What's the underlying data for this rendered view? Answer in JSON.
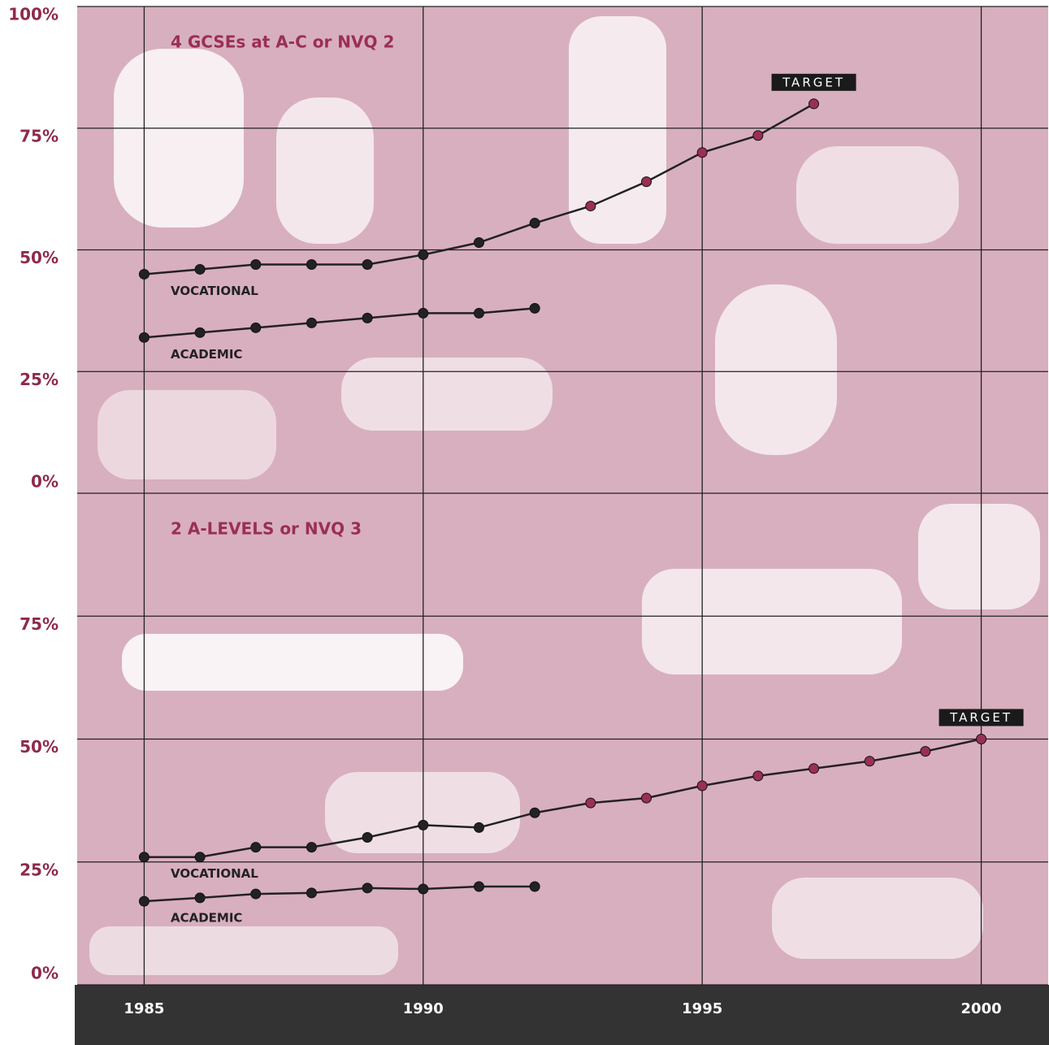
{
  "chart_data": [
    {
      "type": "line",
      "title": "4 GCSEs at A-C or NVQ 2",
      "x": [
        1985,
        1986,
        1987,
        1988,
        1989,
        1990,
        1991,
        1992,
        1993,
        1994,
        1995,
        1996,
        1997
      ],
      "series": [
        {
          "name": "VOCATIONAL",
          "color": "#222222",
          "marker_colors": [
            "#222222",
            "#222222",
            "#222222",
            "#222222",
            "#222222",
            "#222222",
            "#222222",
            "#222222",
            "#9a2f55",
            "#9a2f55",
            "#9a2f55",
            "#9a2f55",
            "#9a2f55"
          ],
          "values": [
            45,
            46,
            47,
            47,
            47,
            49,
            51.5,
            55.5,
            59,
            64,
            70,
            73.5,
            80
          ]
        },
        {
          "name": "ACADEMIC",
          "color": "#222222",
          "values": [
            32,
            33,
            34,
            35,
            36,
            37,
            37,
            38,
            null,
            null,
            null,
            null,
            null
          ]
        }
      ],
      "annotations": [
        {
          "text": "TARGET"
        }
      ],
      "xlim": [
        1983.8,
        2001.2
      ],
      "xticks": [
        1985,
        1990,
        1995,
        2000
      ],
      "ylim": [
        0,
        100
      ],
      "yticks": [
        {
          "value": 0,
          "label": "0%"
        },
        {
          "value": 25,
          "label": "25%"
        },
        {
          "value": 50,
          "label": "50%"
        },
        {
          "value": 75,
          "label": "75%"
        },
        {
          "value": 100,
          "label": "100%"
        }
      ],
      "grid": true
    },
    {
      "type": "line",
      "title": "2 A-LEVELS or NVQ 3",
      "x": [
        1985,
        1986,
        1987,
        1988,
        1989,
        1990,
        1991,
        1992,
        1993,
        1994,
        1995,
        1996,
        1997,
        1998,
        1999,
        2000
      ],
      "series": [
        {
          "name": "VOCATIONAL",
          "color": "#222222",
          "marker_colors": [
            "#222222",
            "#222222",
            "#222222",
            "#222222",
            "#222222",
            "#222222",
            "#222222",
            "#222222",
            "#9a2f55",
            "#9a2f55",
            "#9a2f55",
            "#9a2f55",
            "#9a2f55",
            "#9a2f55",
            "#9a2f55",
            "#9a2f55"
          ],
          "values": [
            26,
            26,
            28,
            28,
            30,
            32.5,
            32,
            35,
            37,
            38,
            40.5,
            42.5,
            44,
            45.5,
            47.5,
            50
          ]
        },
        {
          "name": "ACADEMIC",
          "color": "#222222",
          "values": [
            17,
            17.7,
            18.5,
            18.7,
            19.7,
            19.5,
            20,
            20,
            null,
            null,
            null,
            null,
            null,
            null,
            null,
            null
          ]
        }
      ],
      "annotations": [
        {
          "text": "TARGET"
        }
      ],
      "xlim": [
        1983.8,
        2001.2
      ],
      "xticks": [
        1985,
        1990,
        1995,
        2000
      ],
      "ylim": [
        0,
        100
      ],
      "yticks": [
        {
          "value": 0,
          "label": "0%"
        },
        {
          "value": 25,
          "label": "25%"
        },
        {
          "value": 50,
          "label": "50%"
        },
        {
          "value": 75,
          "label": "75%"
        }
      ],
      "grid": true
    }
  ]
}
